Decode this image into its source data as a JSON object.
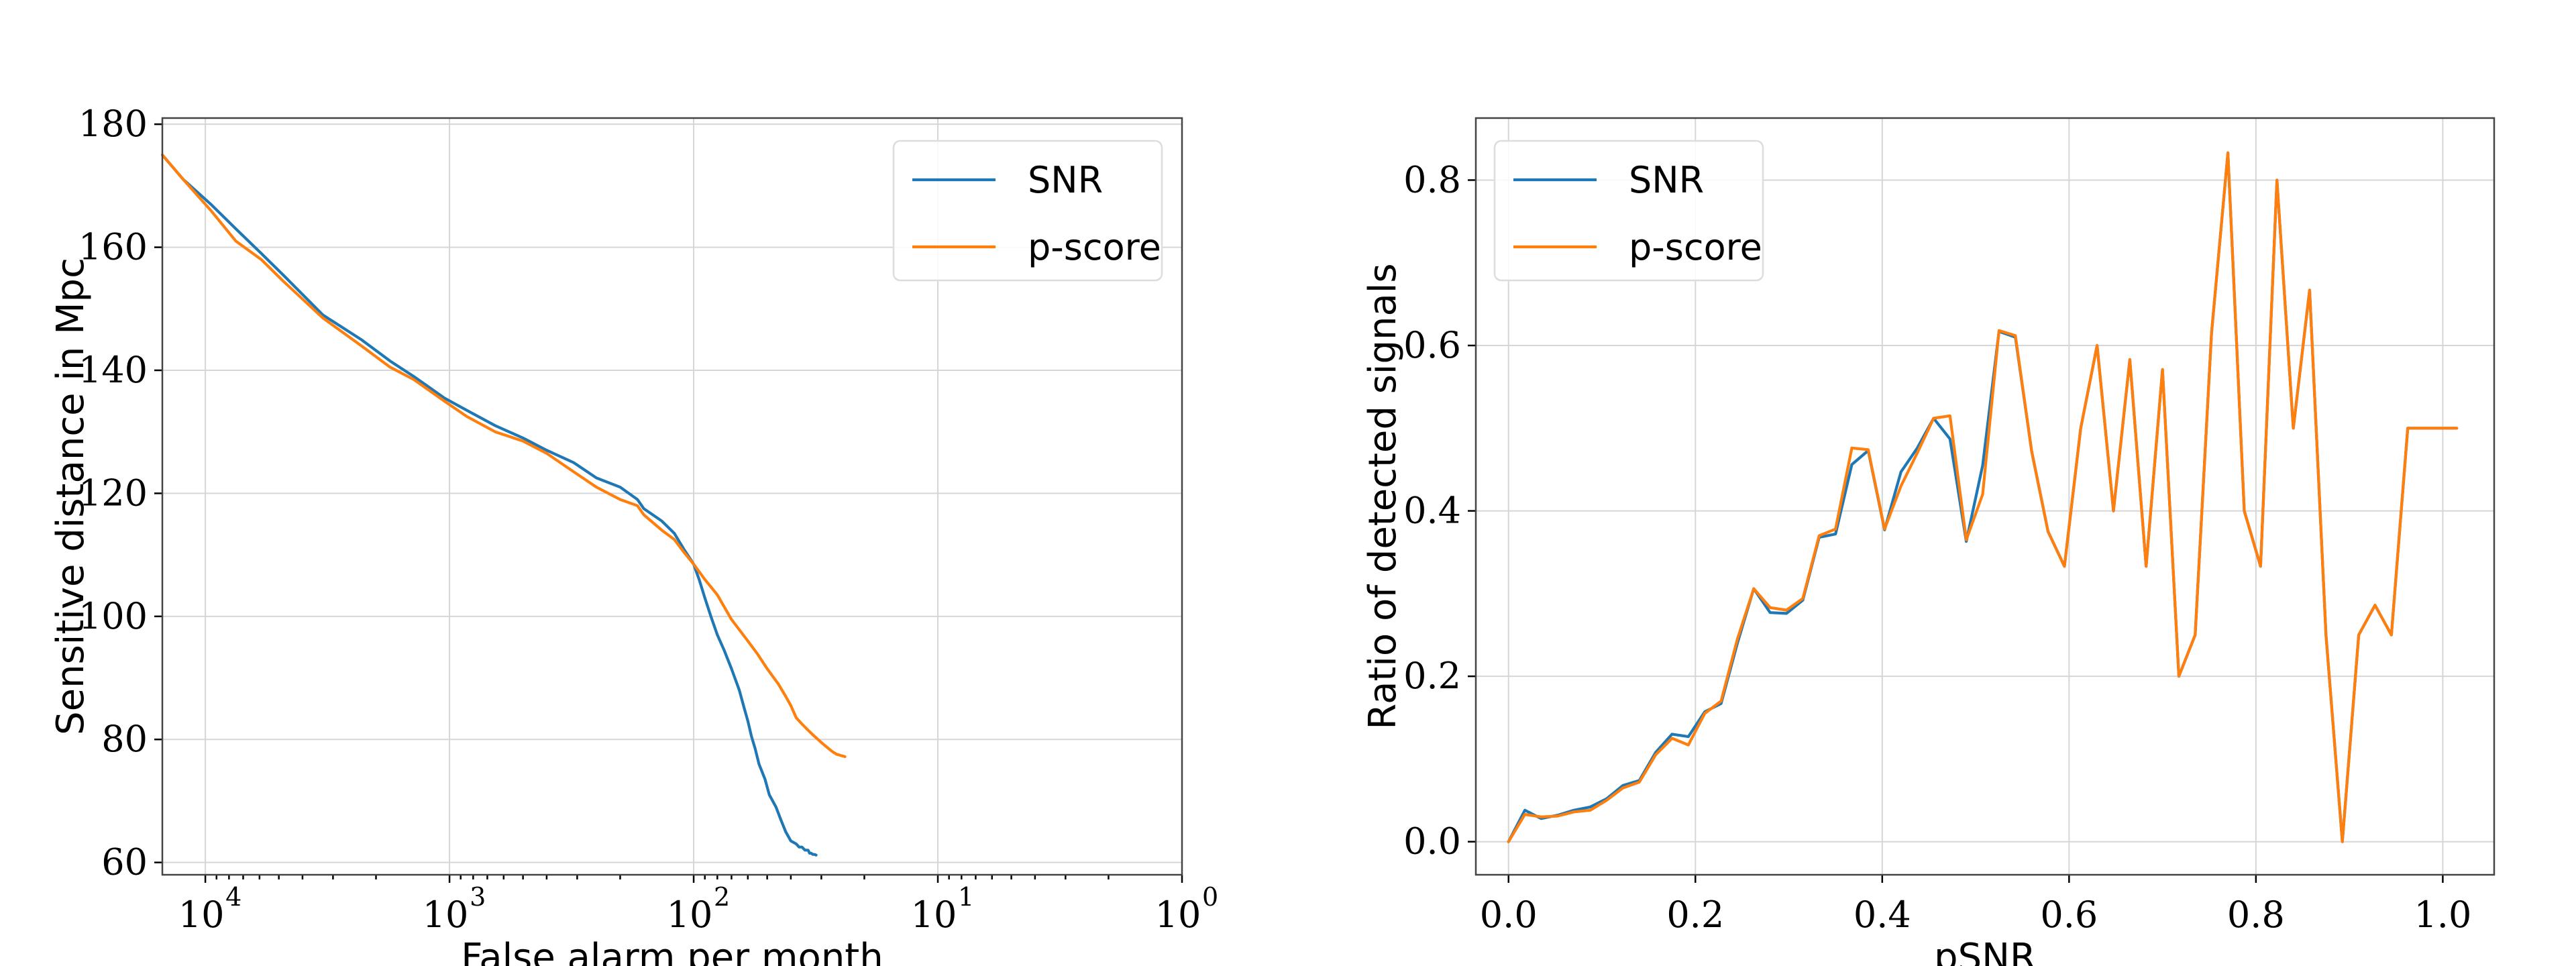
{
  "chart_data": [
    {
      "type": "line",
      "xlabel": "False alarm per month",
      "ylabel": "Sensitive distance in Mpc",
      "xscale": "log",
      "xaxis_inverted": true,
      "xlim": [
        15000,
        1
      ],
      "ylim": [
        58,
        181
      ],
      "xticks": [
        {
          "value": 10000,
          "base": "10",
          "exp": "4"
        },
        {
          "value": 1000,
          "base": "10",
          "exp": "3"
        },
        {
          "value": 100,
          "base": "10",
          "exp": "2"
        },
        {
          "value": 10,
          "base": "10",
          "exp": "1"
        },
        {
          "value": 1,
          "base": "10",
          "exp": "0"
        }
      ],
      "yticks": [
        60,
        80,
        100,
        120,
        140,
        160,
        180
      ],
      "grid": true,
      "legend_position": "top-right",
      "series": [
        {
          "name": "SNR",
          "color": "#1f77b4",
          "x": [
            15000,
            12300,
            9500,
            7500,
            5900,
            4800,
            3300,
            2300,
            1750,
            1400,
            1050,
            850,
            650,
            500,
            400,
            310,
            250,
            200,
            170,
            160,
            135,
            120,
            110,
            100,
            95,
            90,
            85,
            80,
            75,
            70,
            65,
            62,
            60,
            58,
            56,
            54,
            51,
            49,
            46,
            44,
            42,
            40,
            38,
            37,
            36,
            35,
            34,
            33.5,
            33,
            32.5,
            32,
            31.5
          ],
          "y": [
            175,
            171,
            167,
            163,
            159,
            155.5,
            149,
            145,
            141.5,
            139,
            135.5,
            133.5,
            131,
            129,
            127,
            125,
            122.5,
            121,
            119,
            117.5,
            115.5,
            113.5,
            111,
            108.5,
            106,
            103,
            100,
            97,
            94.5,
            91.5,
            88,
            85,
            83,
            80.5,
            78.5,
            76,
            73.5,
            71,
            69,
            67,
            65,
            63.5,
            63,
            62.5,
            62.5,
            62,
            62,
            61.5,
            61.5,
            61.3,
            61.3,
            61.2
          ]
        },
        {
          "name": "p-score",
          "color": "#ff7f0e",
          "x": [
            15000,
            12300,
            9500,
            7500,
            5900,
            4800,
            3300,
            2300,
            1750,
            1400,
            1050,
            850,
            650,
            500,
            400,
            310,
            250,
            200,
            170,
            160,
            135,
            120,
            110,
            100,
            90,
            80,
            70,
            60,
            55,
            50,
            45,
            42,
            40,
            38,
            36,
            34,
            32,
            30,
            29,
            28,
            27,
            26.5,
            26,
            25.5,
            25,
            24.5,
            24
          ],
          "y": [
            175,
            171,
            166,
            161,
            158,
            154.5,
            148.5,
            144,
            140.5,
            138.5,
            135,
            132.5,
            130,
            128.5,
            126.5,
            123.5,
            121,
            119,
            118,
            116.5,
            114,
            112.5,
            110.5,
            108.5,
            106,
            103.5,
            99.5,
            96,
            94,
            91.5,
            89,
            87,
            85.5,
            83.5,
            82.5,
            81.5,
            80.5,
            79.5,
            79,
            78.5,
            78,
            77.8,
            77.6,
            77.5,
            77.4,
            77.3,
            77.2
          ]
        }
      ]
    },
    {
      "type": "line",
      "xlabel": "pSNR",
      "ylabel": "Ratio of detected signals",
      "xlim": [
        -0.035,
        1.055
      ],
      "ylim": [
        -0.04,
        0.875
      ],
      "xticks": [
        "0.0",
        "0.2",
        "0.4",
        "0.6",
        "0.8",
        "1.0"
      ],
      "yticks": [
        "0.0",
        "0.2",
        "0.4",
        "0.6",
        "0.8"
      ],
      "grid": true,
      "legend_position": "top-left",
      "series": [
        {
          "name": "SNR",
          "color": "#1f77b4",
          "x": [
            0,
            0.0175,
            0.035,
            0.0525,
            0.07,
            0.0875,
            0.105,
            0.1225,
            0.14,
            0.1575,
            0.175,
            0.1925,
            0.21,
            0.2275,
            0.245,
            0.2625,
            0.28,
            0.2975,
            0.315,
            0.3325,
            0.35,
            0.3675,
            0.385,
            0.4025,
            0.42,
            0.4375,
            0.455,
            0.4725,
            0.49,
            0.5075,
            0.525,
            0.5425,
            0.56,
            0.5775,
            0.595,
            0.6125,
            0.63,
            0.6475,
            0.665,
            0.6825,
            0.7,
            0.7175,
            0.735,
            0.7525,
            0.77,
            0.7875,
            0.805,
            0.8225,
            0.84,
            0.8575,
            0.875,
            0.8925,
            0.91,
            0.9275,
            0.945,
            0.9625,
            0.98,
            0.9975,
            1.015
          ],
          "y": [
            0.0,
            0.038,
            0.028,
            0.032,
            0.038,
            0.042,
            0.052,
            0.068,
            0.074,
            0.108,
            0.13,
            0.127,
            0.157,
            0.167,
            0.24,
            0.306,
            0.277,
            0.276,
            0.292,
            0.368,
            0.372,
            0.456,
            0.473,
            0.377,
            0.447,
            0.476,
            0.512,
            0.487,
            0.363,
            0.455,
            0.617,
            0.61,
            0.472,
            0.375,
            0.333,
            0.5,
            0.6,
            0.4,
            0.583,
            0.333,
            0.571,
            0.2,
            0.25,
            0.615,
            0.833,
            0.4,
            0.333,
            0.8,
            0.5,
            0.667,
            0.25,
            0.0,
            0.25,
            0.286,
            0.25,
            0.5,
            0.5,
            0.5,
            0.5
          ]
        },
        {
          "name": "p-score",
          "color": "#ff7f0e",
          "x": [
            0,
            0.0175,
            0.035,
            0.0525,
            0.07,
            0.0875,
            0.105,
            0.1225,
            0.14,
            0.1575,
            0.175,
            0.1925,
            0.21,
            0.2275,
            0.245,
            0.2625,
            0.28,
            0.2975,
            0.315,
            0.3325,
            0.35,
            0.3675,
            0.385,
            0.4025,
            0.42,
            0.4375,
            0.455,
            0.4725,
            0.49,
            0.5075,
            0.525,
            0.5425,
            0.56,
            0.5775,
            0.595,
            0.6125,
            0.63,
            0.6475,
            0.665,
            0.6825,
            0.7,
            0.7175,
            0.735,
            0.7525,
            0.77,
            0.7875,
            0.805,
            0.8225,
            0.84,
            0.8575,
            0.875,
            0.8925,
            0.91,
            0.9275,
            0.945,
            0.9625,
            0.98,
            0.9975,
            1.015
          ],
          "y": [
            0.0,
            0.033,
            0.03,
            0.031,
            0.036,
            0.038,
            0.05,
            0.065,
            0.072,
            0.105,
            0.125,
            0.117,
            0.155,
            0.17,
            0.245,
            0.306,
            0.283,
            0.28,
            0.294,
            0.37,
            0.378,
            0.476,
            0.474,
            0.378,
            0.43,
            0.47,
            0.512,
            0.515,
            0.365,
            0.42,
            0.618,
            0.612,
            0.472,
            0.375,
            0.333,
            0.5,
            0.6,
            0.4,
            0.583,
            0.333,
            0.571,
            0.2,
            0.25,
            0.615,
            0.833,
            0.4,
            0.333,
            0.8,
            0.5,
            0.667,
            0.25,
            0.0,
            0.25,
            0.286,
            0.25,
            0.5,
            0.5,
            0.5,
            0.5
          ]
        }
      ]
    }
  ]
}
